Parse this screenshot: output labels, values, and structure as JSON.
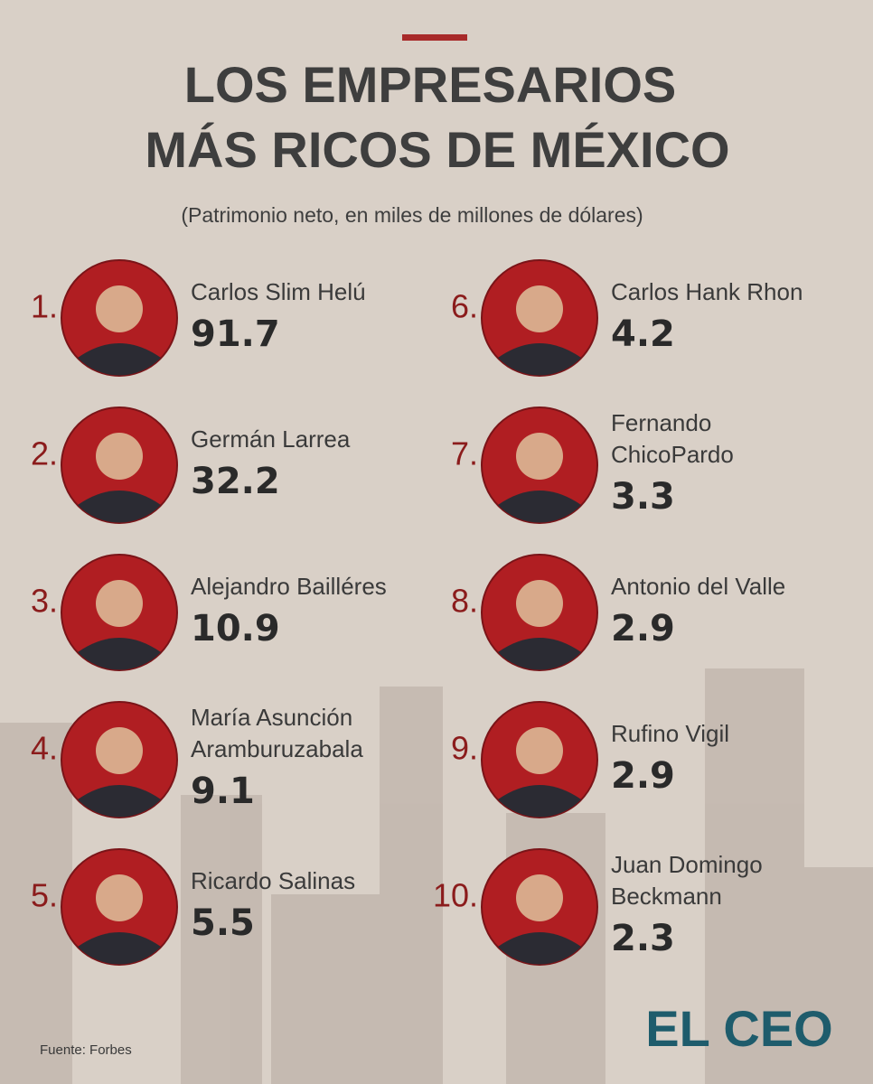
{
  "header": {
    "title_lines": [
      "LOS EMPRESARIOS",
      "MÁS RICOS DE MÉXICO"
    ],
    "subtitle": "(Patrimonio neto, en miles de millones de dólares)"
  },
  "entries": [
    {
      "rank": "1.",
      "name": [
        "Carlos Slim Helú"
      ],
      "value": 91.7
    },
    {
      "rank": "2.",
      "name": [
        "Germán Larrea"
      ],
      "value": 32.2
    },
    {
      "rank": "3.",
      "name": [
        "Alejandro Bailléres"
      ],
      "value": 10.9
    },
    {
      "rank": "4.",
      "name": [
        "María Asunción",
        "Aramburuzabala"
      ],
      "value": 9.1
    },
    {
      "rank": "5.",
      "name": [
        "Ricardo Salinas"
      ],
      "value": 5.5
    },
    {
      "rank": "6.",
      "name": [
        "Carlos Hank Rhon"
      ],
      "value": 4.2
    },
    {
      "rank": "7.",
      "name": [
        "Fernando",
        "ChicoPardo"
      ],
      "value": 3.3
    },
    {
      "rank": "8.",
      "name": [
        "Antonio del Valle"
      ],
      "value": 2.9
    },
    {
      "rank": "9.",
      "name": [
        "Rufino Vigil"
      ],
      "value": 2.9
    },
    {
      "rank": "10.",
      "name": [
        "Juan Domingo",
        "Beckmann"
      ],
      "value": 2.3
    }
  ],
  "footer": {
    "source": "Fuente: Forbes",
    "logo": "EL CEO"
  }
}
